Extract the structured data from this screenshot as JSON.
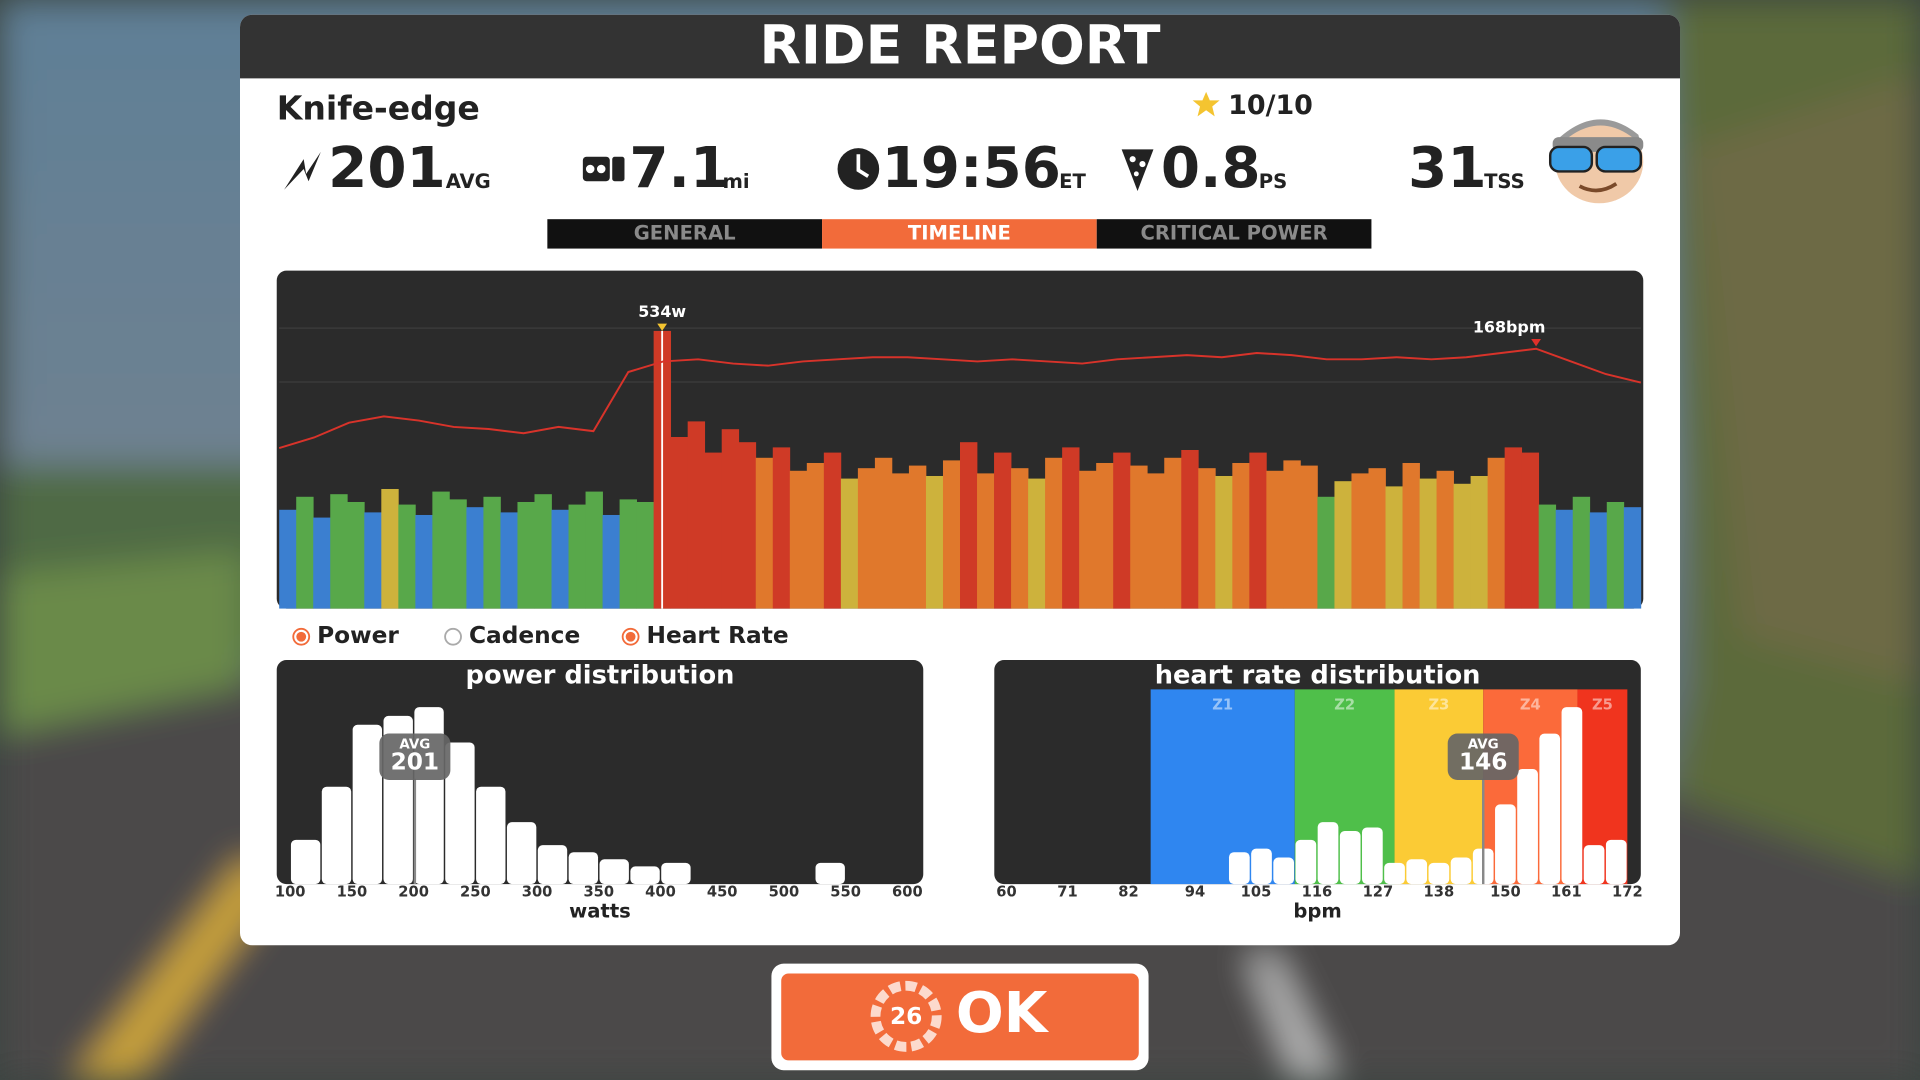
{
  "header": {
    "title": "RIDE REPORT"
  },
  "summary": {
    "route": "Knife-edge",
    "rating": "10/10",
    "avg_power": "201",
    "avg_power_unit": "AVG",
    "distance": "7.1",
    "distance_unit": "mi",
    "elapsed_time": "19:56",
    "elapsed_time_unit": "ET",
    "pizza_slices": "0.8",
    "pizza_slices_unit": "PS",
    "tss": "31",
    "tss_unit": "TSS"
  },
  "tabs": [
    {
      "label": "GENERAL",
      "active": false
    },
    {
      "label": "TIMELINE",
      "active": true
    },
    {
      "label": "CRITICAL POWER",
      "active": false
    }
  ],
  "timeline": {
    "type": "bar",
    "series": [
      {
        "values": [
          190,
          215,
          175,
          220,
          205,
          185,
          230,
          200,
          180,
          225,
          210,
          195,
          215,
          185,
          205,
          220,
          190,
          200,
          225,
          180,
          210,
          205,
          534,
          330,
          360,
          300,
          345,
          320,
          290,
          310,
          265,
          280,
          300,
          250,
          270,
          290,
          260,
          275,
          255,
          285,
          320,
          260,
          300,
          270,
          250,
          290,
          310,
          265,
          280,
          300,
          275,
          260,
          290,
          305,
          270,
          255,
          280,
          300,
          265,
          285,
          275,
          215,
          245,
          260,
          270,
          235,
          280,
          250,
          265,
          240,
          255,
          290,
          310,
          300,
          200,
          190,
          215,
          185,
          205,
          195
        ],
        "axis": "y"
      },
      {
        "values": [
          121,
          126,
          133,
          136,
          134,
          131,
          130,
          128,
          131,
          129,
          157,
          162,
          163,
          161,
          160,
          162,
          163,
          164,
          164,
          163,
          162,
          163,
          162,
          161,
          163,
          164,
          165,
          164,
          166,
          165,
          163,
          163,
          164,
          163,
          164,
          166,
          168,
          162,
          156,
          152
        ],
        "axis": "y2",
        "color": "#d8332a"
      }
    ],
    "ylim": [
      0,
      650
    ],
    "y2lim": [
      45,
      205
    ],
    "zone_limits": [
      200,
      230,
      260,
      300
    ],
    "zone_colors": [
      "#3b7fd0",
      "#58a84a",
      "#cdb23c",
      "#e0782c",
      "#cf3a26"
    ],
    "peak_labels": [
      "534w",
      "168bpm"
    ],
    "peak_colors": [
      "#f4c430",
      "#e0302a"
    ]
  },
  "legend": [
    {
      "label": "Power",
      "checked": true
    },
    {
      "label": "Cadence",
      "checked": false
    },
    {
      "label": "Heart Rate",
      "checked": true
    }
  ],
  "power_distribution": {
    "type": "histogram",
    "title": "power distribution",
    "x_label": "watts",
    "bins": [
      100,
      125,
      150,
      175,
      200,
      225,
      250,
      275,
      300,
      325,
      350,
      375,
      400,
      425,
      450,
      475,
      500,
      525,
      550
    ],
    "values": [
      25,
      55,
      90,
      95,
      100,
      80,
      55,
      35,
      22,
      18,
      14,
      10,
      12,
      0,
      0,
      0,
      0,
      12
    ],
    "xlim": [
      100,
      600
    ],
    "xticks": [
      100,
      150,
      200,
      250,
      300,
      350,
      400,
      450,
      500,
      550,
      600
    ],
    "ylim": [
      0,
      110
    ],
    "avg": 201,
    "avg_label": "AVG",
    "color": "#ffffff"
  },
  "hr_distribution": {
    "type": "histogram",
    "title": "heart rate distribution",
    "x_label": "bpm",
    "bins": [
      100,
      104,
      108,
      112,
      116,
      120,
      124,
      128,
      132,
      136,
      140,
      144,
      148,
      152,
      156,
      160,
      164,
      168,
      172
    ],
    "values": [
      18,
      20,
      15,
      25,
      35,
      30,
      32,
      12,
      14,
      12,
      15,
      20,
      45,
      65,
      85,
      100,
      22,
      25
    ],
    "xlim": [
      60,
      172
    ],
    "xticks": [
      60,
      71,
      82,
      94,
      105,
      116,
      127,
      138,
      150,
      161,
      172
    ],
    "ylim": [
      0,
      110
    ],
    "avg": 146,
    "avg_label": "AVG",
    "color": "#ffffff",
    "zones": [
      {
        "name": "Z1",
        "from": 86,
        "to": 112,
        "color": "#2f86f0"
      },
      {
        "name": "Z2",
        "from": 112,
        "to": 130,
        "color": "#4fbf4a"
      },
      {
        "name": "Z3",
        "from": 130,
        "to": 146,
        "color": "#fbcb35"
      },
      {
        "name": "Z4",
        "from": 146,
        "to": 163,
        "color": "#fb6a3a"
      },
      {
        "name": "Z5",
        "from": 163,
        "to": 172,
        "color": "#f0341e"
      }
    ]
  },
  "ok_button": {
    "label": "OK",
    "countdown": "26"
  }
}
